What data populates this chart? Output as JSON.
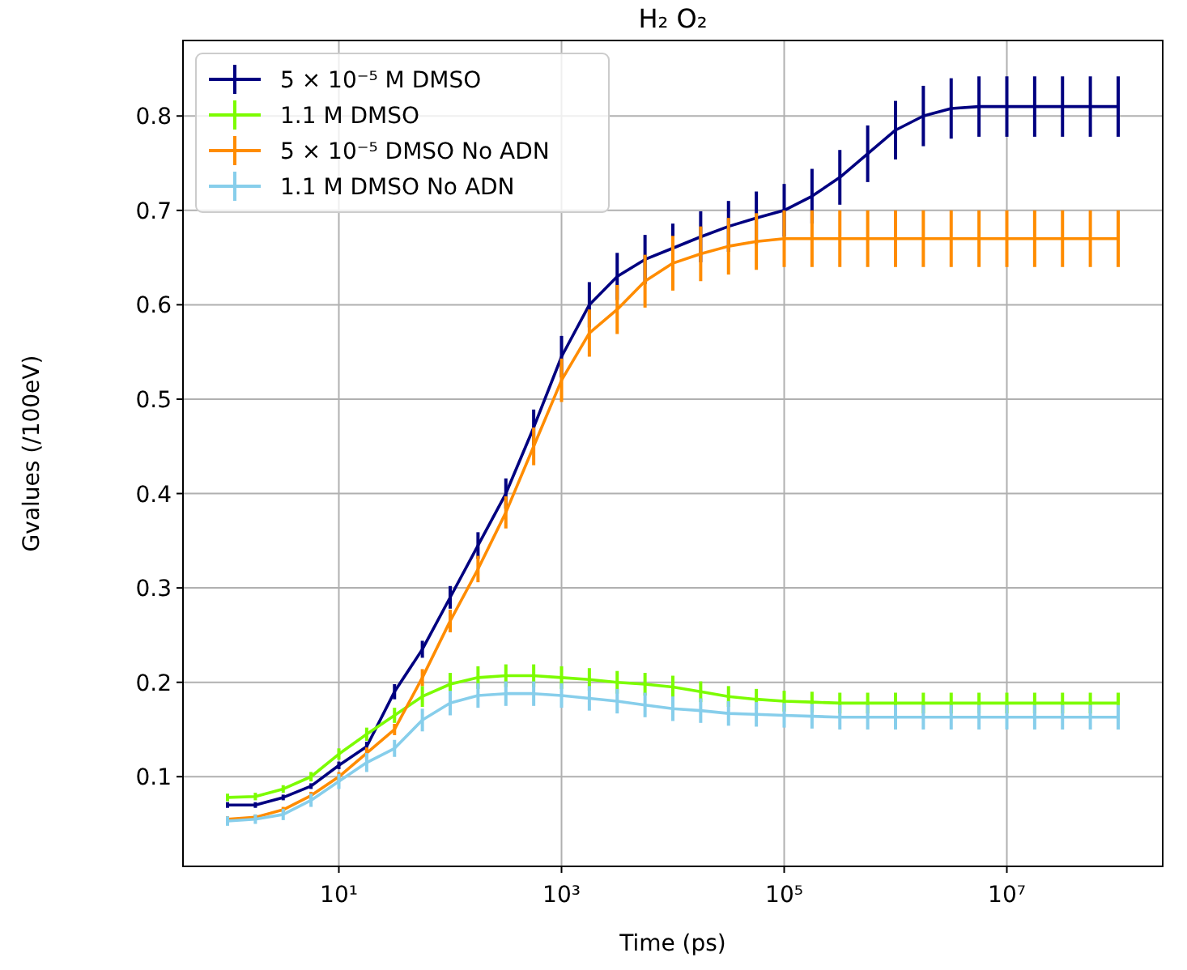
{
  "chart_data": {
    "type": "line",
    "title": "H₂ O₂",
    "xlabel": "Time (ps)",
    "ylabel": "Gvalues (/100eV)",
    "log": "x",
    "grid": true,
    "legend": "top left",
    "marker": "none",
    "line_style": "solid",
    "xlim": [
      0.398,
      251200000
    ],
    "ylim": [
      0.005,
      0.88
    ],
    "xticks": [
      {
        "value": 10,
        "label": "10¹"
      },
      {
        "value": 1000,
        "label": "10³"
      },
      {
        "value": 100000,
        "label": "10⁵"
      },
      {
        "value": 10000000,
        "label": "10⁷"
      }
    ],
    "yticks": [
      0.1,
      0.2,
      0.3,
      0.4,
      0.5,
      0.6,
      0.7,
      0.8
    ],
    "x": [
      1,
      1.778,
      3.162,
      5.623,
      10,
      17.78,
      31.62,
      56.23,
      100,
      177.8,
      316.2,
      562.3,
      1000,
      1778,
      3162,
      5623,
      10000,
      17780,
      31620,
      56230,
      100000,
      177800,
      316200,
      562300,
      1000000,
      1778000,
      3162000,
      5623000,
      10000000,
      17780000,
      31620000,
      56230000,
      100000000
    ],
    "series": [
      {
        "name": "5 × 10⁻⁵ M DMSO",
        "color": "#000080",
        "values": [
          0.07,
          0.07,
          0.078,
          0.09,
          0.112,
          0.132,
          0.19,
          0.235,
          0.29,
          0.345,
          0.4,
          0.47,
          0.545,
          0.6,
          0.63,
          0.648,
          0.66,
          0.672,
          0.683,
          0.692,
          0.7,
          0.715,
          0.735,
          0.76,
          0.785,
          0.8,
          0.808,
          0.81,
          0.81,
          0.81,
          0.81,
          0.81,
          0.81
        ],
        "errors": [
          0.003,
          0.003,
          0.003,
          0.003,
          0.004,
          0.005,
          0.008,
          0.009,
          0.012,
          0.014,
          0.016,
          0.019,
          0.022,
          0.024,
          0.025,
          0.026,
          0.026,
          0.027,
          0.027,
          0.028,
          0.028,
          0.029,
          0.029,
          0.03,
          0.031,
          0.032,
          0.032,
          0.032,
          0.032,
          0.032,
          0.032,
          0.032,
          0.032
        ]
      },
      {
        "name": "1.1 M DMSO",
        "color": "#7cfc00",
        "values": [
          0.078,
          0.079,
          0.087,
          0.1,
          0.124,
          0.145,
          0.165,
          0.185,
          0.198,
          0.205,
          0.207,
          0.207,
          0.205,
          0.203,
          0.2,
          0.198,
          0.195,
          0.19,
          0.185,
          0.182,
          0.18,
          0.179,
          0.178,
          0.178,
          0.178,
          0.178,
          0.178,
          0.178,
          0.178,
          0.178,
          0.178,
          0.178,
          0.178
        ],
        "errors": [
          0.004,
          0.004,
          0.004,
          0.005,
          0.006,
          0.007,
          0.008,
          0.011,
          0.012,
          0.012,
          0.012,
          0.012,
          0.012,
          0.012,
          0.012,
          0.012,
          0.012,
          0.011,
          0.011,
          0.011,
          0.011,
          0.011,
          0.011,
          0.011,
          0.011,
          0.011,
          0.011,
          0.011,
          0.011,
          0.011,
          0.011,
          0.011,
          0.011
        ]
      },
      {
        "name": "5 × 10⁻⁵ DMSO No ADN",
        "color": "#ff8c00",
        "values": [
          0.055,
          0.057,
          0.065,
          0.08,
          0.1,
          0.125,
          0.15,
          0.205,
          0.265,
          0.32,
          0.38,
          0.45,
          0.52,
          0.57,
          0.595,
          0.625,
          0.644,
          0.654,
          0.662,
          0.667,
          0.67,
          0.67,
          0.67,
          0.67,
          0.67,
          0.67,
          0.67,
          0.67,
          0.67,
          0.67,
          0.67,
          0.67,
          0.67
        ],
        "errors": [
          0.003,
          0.003,
          0.003,
          0.004,
          0.005,
          0.006,
          0.006,
          0.009,
          0.012,
          0.014,
          0.017,
          0.02,
          0.023,
          0.025,
          0.026,
          0.028,
          0.029,
          0.029,
          0.03,
          0.03,
          0.03,
          0.03,
          0.03,
          0.03,
          0.03,
          0.03,
          0.03,
          0.03,
          0.03,
          0.03,
          0.03,
          0.03,
          0.03
        ]
      },
      {
        "name": "1.1 M DMSO No ADN",
        "color": "#87ceeb",
        "values": [
          0.053,
          0.055,
          0.06,
          0.075,
          0.095,
          0.115,
          0.13,
          0.16,
          0.178,
          0.186,
          0.188,
          0.188,
          0.186,
          0.183,
          0.18,
          0.176,
          0.172,
          0.17,
          0.167,
          0.166,
          0.165,
          0.164,
          0.163,
          0.163,
          0.163,
          0.163,
          0.163,
          0.163,
          0.163,
          0.163,
          0.163,
          0.163,
          0.163
        ],
        "errors": [
          0.005,
          0.005,
          0.006,
          0.007,
          0.008,
          0.01,
          0.009,
          0.012,
          0.013,
          0.013,
          0.013,
          0.013,
          0.013,
          0.013,
          0.013,
          0.013,
          0.013,
          0.013,
          0.013,
          0.013,
          0.013,
          0.013,
          0.013,
          0.013,
          0.013,
          0.013,
          0.013,
          0.013,
          0.013,
          0.013,
          0.013,
          0.013,
          0.013
        ]
      }
    ]
  }
}
